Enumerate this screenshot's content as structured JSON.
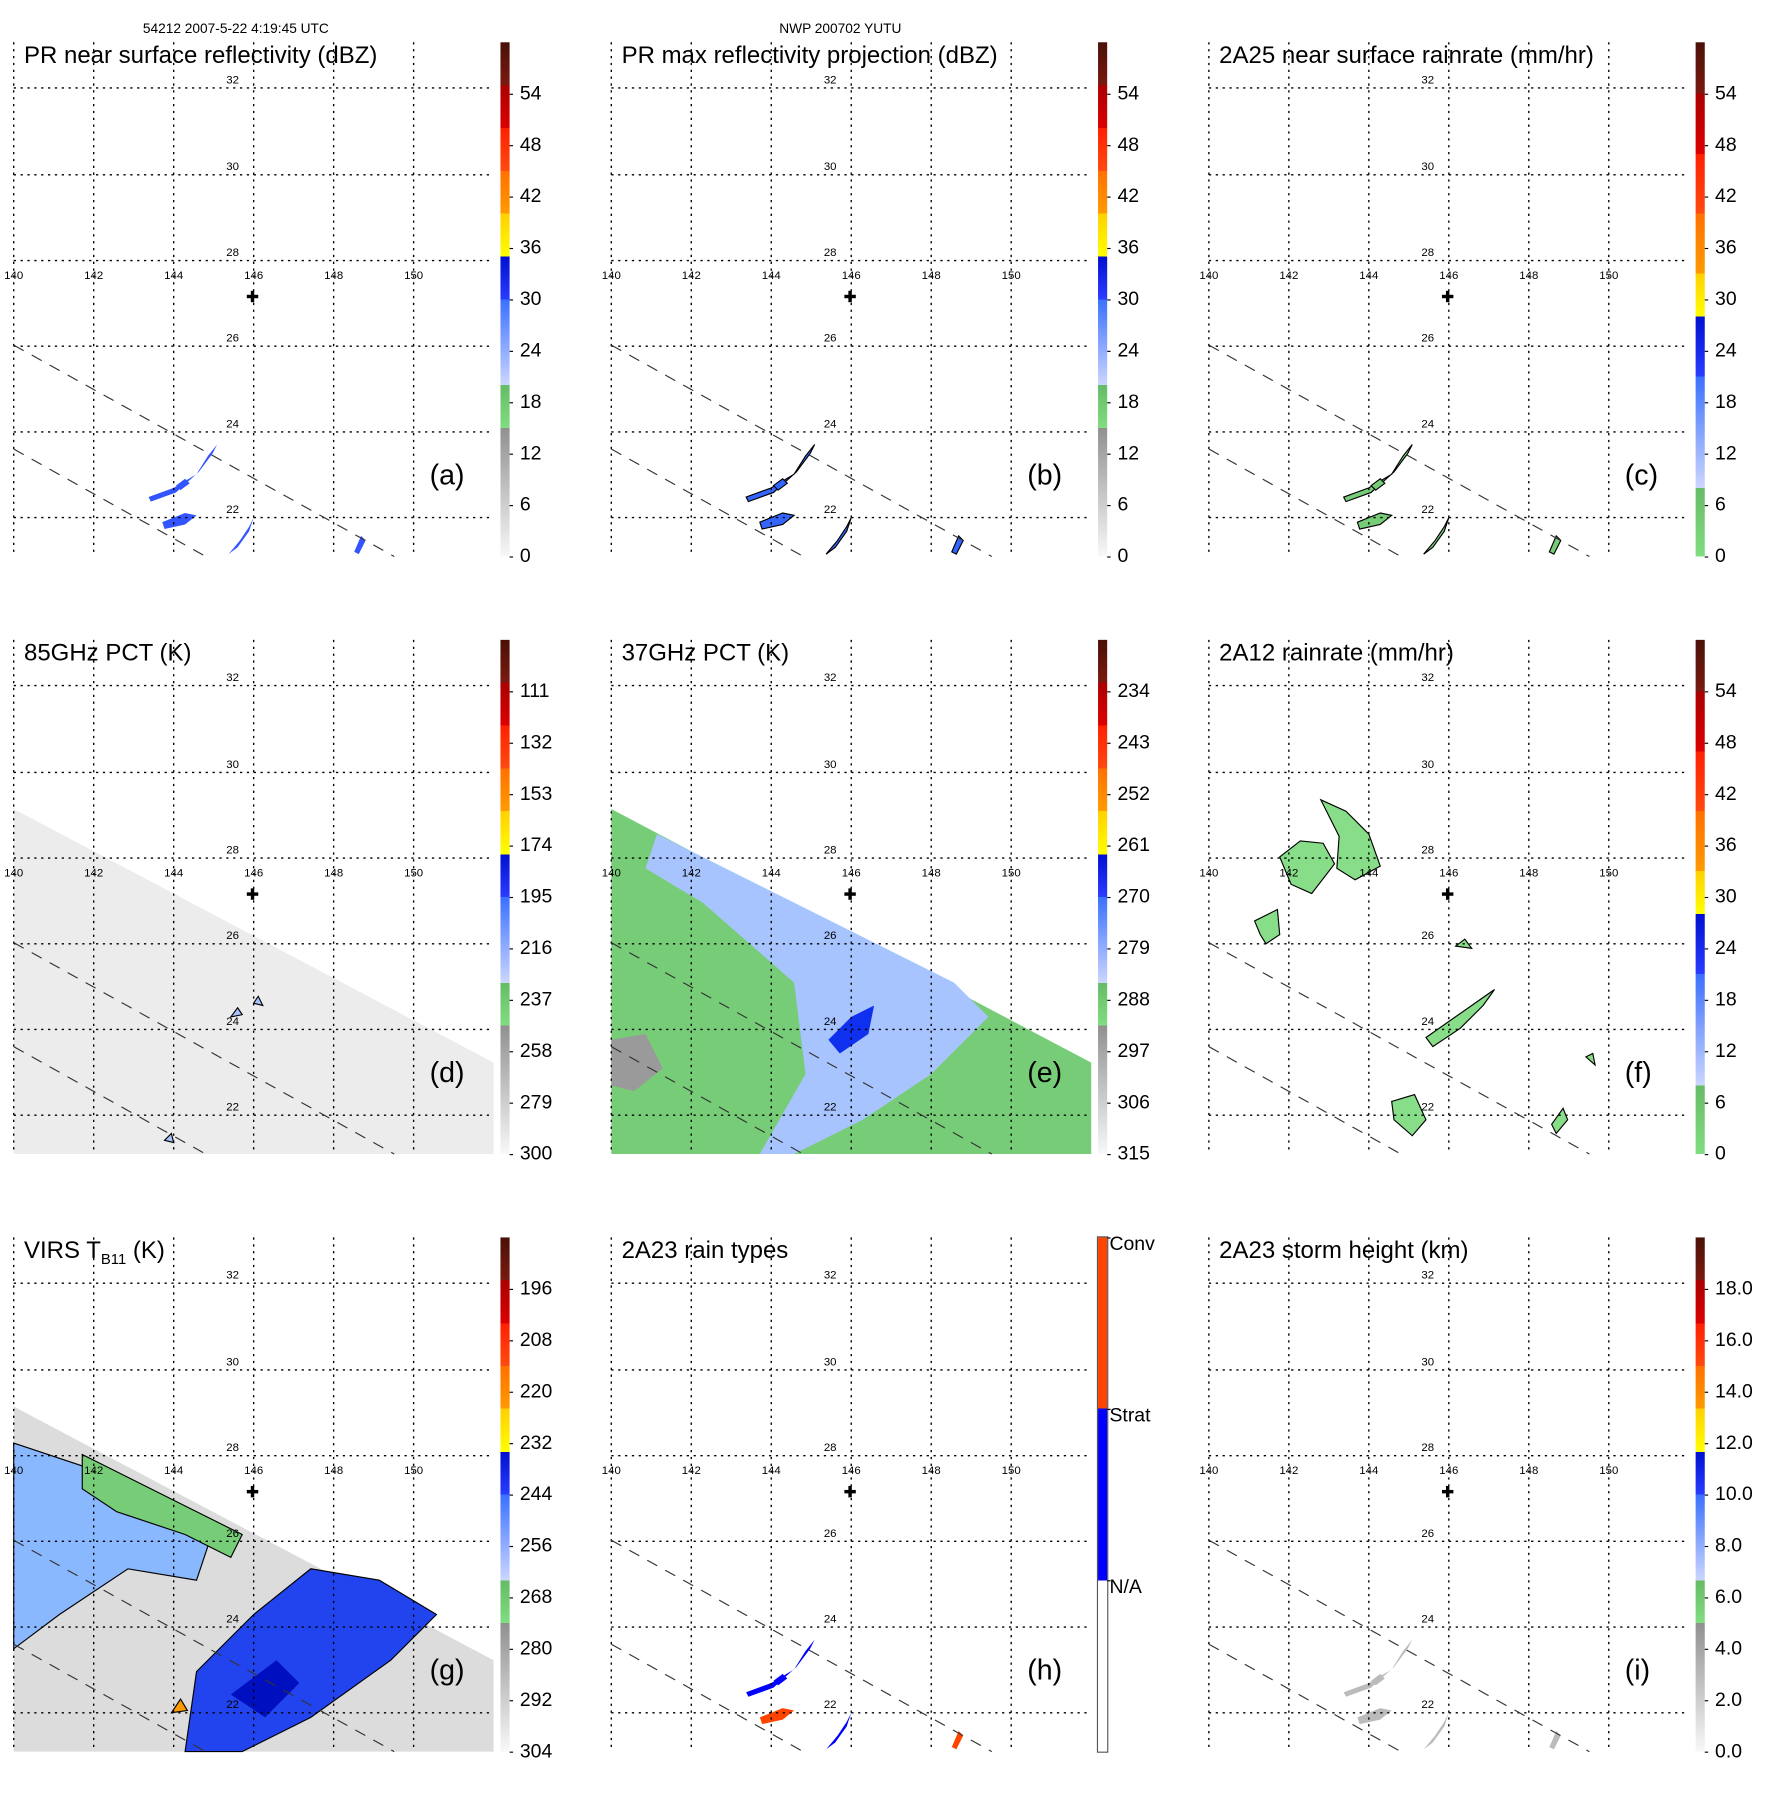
{
  "header": {
    "left": "54212 2007-5-22 4:19:45 UTC",
    "center": "NWP 200702 YUTU"
  },
  "axes": {
    "lon_labels": [
      "140",
      "142",
      "144",
      "146",
      "148",
      "150"
    ],
    "lat_labels": [
      "32",
      "30",
      "28",
      "26",
      "24",
      "22"
    ]
  },
  "panels": [
    {
      "id": "a",
      "title": "PR near surface reflectivity (dBZ)",
      "label": "(a)",
      "kind": "radar",
      "scheme": "std",
      "colorbar_labels": [
        "0",
        "6",
        "12",
        "18",
        "24",
        "30",
        "36",
        "42",
        "48",
        "54"
      ]
    },
    {
      "id": "b",
      "title": "PR max reflectivity projection (dBZ)",
      "label": "(b)",
      "kind": "radar-contour",
      "scheme": "std",
      "colorbar_labels": [
        "0",
        "6",
        "12",
        "18",
        "24",
        "30",
        "36",
        "42",
        "48",
        "54"
      ]
    },
    {
      "id": "c",
      "title": "2A25 near surface rainrate (mm/hr)",
      "label": "(c)",
      "kind": "rain-contour",
      "scheme": "rain",
      "colorbar_labels": [
        "0",
        "6",
        "12",
        "18",
        "24",
        "30",
        "36",
        "42",
        "48",
        "54"
      ]
    },
    {
      "id": "d",
      "title": "85GHz PCT (K)",
      "label": "(d)",
      "kind": "pct85",
      "scheme": "std",
      "colorbar_labels": [
        "300",
        "279",
        "258",
        "237",
        "216",
        "195",
        "174",
        "153",
        "132",
        "111"
      ]
    },
    {
      "id": "e",
      "title": "37GHz PCT (K)",
      "label": "(e)",
      "kind": "pct37",
      "scheme": "std",
      "colorbar_labels": [
        "315",
        "306",
        "297",
        "288",
        "279",
        "270",
        "261",
        "252",
        "243",
        "234"
      ]
    },
    {
      "id": "f",
      "title": "2A12 rainrate (mm/hr)",
      "label": "(f)",
      "kind": "tmi-rain",
      "scheme": "rain",
      "colorbar_labels": [
        "0",
        "6",
        "12",
        "18",
        "24",
        "30",
        "36",
        "42",
        "48",
        "54"
      ]
    },
    {
      "id": "g",
      "title_main": "VIRS T",
      "title_sub": "B11",
      "title_unit": " (K)",
      "label": "(g)",
      "kind": "virs",
      "scheme": "std",
      "colorbar_labels": [
        "304",
        "292",
        "280",
        "268",
        "256",
        "244",
        "232",
        "220",
        "208",
        "196"
      ]
    },
    {
      "id": "h",
      "title": "2A23 rain types",
      "label": "(h)",
      "kind": "raintype",
      "scheme": "types",
      "colorbar_labels": [
        "N/A",
        "Strat",
        "Conv"
      ]
    },
    {
      "id": "i",
      "title": "2A23 storm height (km)",
      "label": "(i)",
      "kind": "height",
      "scheme": "std",
      "colorbar_labels": [
        "0.0",
        "2.0",
        "4.0",
        "6.0",
        "8.0",
        "10.0",
        "12.0",
        "14.0",
        "16.0",
        "18.0"
      ]
    }
  ],
  "colors": {
    "std": [
      [
        "#f8f8f8",
        "#909090",
        0,
        0.25
      ],
      [
        "#80dd80",
        "#66bb66",
        0.25,
        0.333
      ],
      [
        "#ccd6ff",
        "#3a70ff",
        0.333,
        0.5
      ],
      [
        "#2a3cff",
        "#0010d0",
        0.5,
        0.583
      ],
      [
        "#ffff00",
        "#ffd000",
        0.583,
        0.667
      ],
      [
        "#ff9a00",
        "#ff7000",
        0.667,
        0.75
      ],
      [
        "#ff4a10",
        "#ff2000",
        0.75,
        0.833
      ],
      [
        "#dd0000",
        "#aa0000",
        0.833,
        0.917
      ],
      [
        "#7a1a10",
        "#4a1008",
        0.917,
        1
      ]
    ],
    "rain": [
      [
        "#80dd80",
        "#66bb66",
        0,
        0.133
      ],
      [
        "#ccd6ff",
        "#3a70ff",
        0.133,
        0.35
      ],
      [
        "#2a3cff",
        "#0010d0",
        0.35,
        0.467
      ],
      [
        "#ffff00",
        "#ffd000",
        0.467,
        0.55
      ],
      [
        "#ff9a00",
        "#ff7000",
        0.55,
        0.667
      ],
      [
        "#ff4a10",
        "#ff2000",
        0.667,
        0.783
      ],
      [
        "#dd0000",
        "#aa0000",
        0.783,
        0.9
      ],
      [
        "#7a1a10",
        "#4a1008",
        0.9,
        1
      ]
    ],
    "types": [
      [
        "#ffffff",
        "#ffffff",
        0,
        0.333
      ],
      [
        "#0000ff",
        "#0000ff",
        0.333,
        0.667
      ],
      [
        "#ff4400",
        "#ff4400",
        0.667,
        1
      ]
    ],
    "swath_green": "#77cc77",
    "swath_blue": "#a8c4ff",
    "deep_blue": "#1030f0"
  }
}
